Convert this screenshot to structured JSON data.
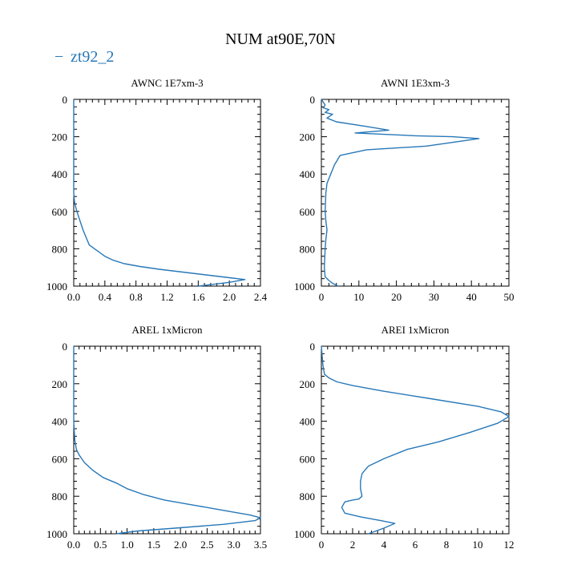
{
  "figure": {
    "title": "NUM at90E,70N",
    "legend": {
      "label": "zt92_2",
      "color": "#2878b8",
      "placement": "top-left"
    }
  },
  "chart_data": [
    {
      "type": "line",
      "title": "AWNC  1E7xm-3",
      "xlim": [
        0,
        2.4
      ],
      "xticks": [
        0,
        0.4,
        0.8,
        1.2,
        1.6,
        2.0,
        2.4
      ],
      "xtick_labels": [
        "0.0",
        "0.4",
        "0.8",
        "1.2",
        "1.6",
        "2.0",
        "2.4"
      ],
      "ylim": [
        1000,
        0
      ],
      "yticks": [
        0,
        200,
        400,
        600,
        800,
        1000
      ],
      "ytick_labels": [
        "0",
        "200",
        "400",
        "600",
        "800",
        "1000"
      ],
      "series": [
        {
          "name": "zt92_2",
          "x": [
            0,
            0,
            0,
            0.01,
            0.04,
            0.08,
            0.12,
            0.16,
            0.2,
            0.3,
            0.4,
            0.5,
            0.65,
            0.85,
            1.1,
            1.4,
            1.7,
            2.0,
            2.2,
            2.0,
            1.6
          ],
          "y": [
            0,
            300,
            500,
            550,
            600,
            650,
            700,
            740,
            780,
            810,
            840,
            860,
            880,
            895,
            910,
            925,
            940,
            955,
            965,
            980,
            1000
          ]
        }
      ]
    },
    {
      "type": "line",
      "title": "AWNI  1E3xm-3",
      "xlim": [
        0,
        50
      ],
      "xticks": [
        0,
        10,
        20,
        30,
        40,
        50
      ],
      "xtick_labels": [
        "0",
        "10",
        "20",
        "30",
        "40",
        "50"
      ],
      "ylim": [
        1000,
        0
      ],
      "yticks": [
        0,
        200,
        400,
        600,
        800,
        1000
      ],
      "ytick_labels": [
        "0",
        "200",
        "400",
        "600",
        "800",
        "1000"
      ],
      "series": [
        {
          "name": "zt92_2",
          "x": [
            0,
            1,
            0.5,
            2,
            1,
            3,
            1.5,
            4,
            12,
            18,
            9,
            25,
            35,
            42,
            28,
            12,
            5,
            3.5,
            2.5,
            1.5,
            1.2,
            1,
            1.2,
            1.5,
            1.2,
            1,
            0.8,
            1,
            2,
            3,
            4.5
          ],
          "y": [
            0,
            30,
            45,
            55,
            70,
            80,
            100,
            120,
            145,
            165,
            180,
            195,
            200,
            210,
            250,
            270,
            300,
            350,
            400,
            450,
            500,
            600,
            650,
            700,
            750,
            800,
            900,
            950,
            970,
            985,
            1000
          ]
        }
      ]
    },
    {
      "type": "line",
      "title": "AREL  1xMicron",
      "xlim": [
        0,
        3.5
      ],
      "xticks": [
        0,
        0.5,
        1.0,
        1.5,
        2.0,
        2.5,
        3.0,
        3.5
      ],
      "xtick_labels": [
        "0.0",
        "0.5",
        "1.0",
        "1.5",
        "2.0",
        "2.5",
        "3.0",
        "3.5"
      ],
      "ylim": [
        1000,
        0
      ],
      "yticks": [
        0,
        200,
        400,
        600,
        800,
        1000
      ],
      "ytick_labels": [
        "0",
        "200",
        "400",
        "600",
        "800",
        "1000"
      ],
      "series": [
        {
          "name": "zt92_2",
          "x": [
            0,
            0,
            0.02,
            0.05,
            0.1,
            0.2,
            0.35,
            0.55,
            0.8,
            1.0,
            1.3,
            1.7,
            2.3,
            2.9,
            3.3,
            3.5,
            3.4,
            2.8,
            1.9,
            1.2,
            0.8
          ],
          "y": [
            0,
            400,
            500,
            550,
            580,
            620,
            660,
            700,
            730,
            760,
            790,
            820,
            850,
            880,
            900,
            915,
            930,
            950,
            970,
            985,
            1000
          ]
        }
      ]
    },
    {
      "type": "line",
      "title": "AREI  1xMicron",
      "xlim": [
        0,
        12
      ],
      "xticks": [
        0,
        2,
        4,
        6,
        8,
        10,
        12
      ],
      "xtick_labels": [
        "0",
        "2",
        "4",
        "6",
        "8",
        "10",
        "12"
      ],
      "ylim": [
        1000,
        0
      ],
      "yticks": [
        0,
        200,
        400,
        600,
        800,
        1000
      ],
      "ytick_labels": [
        "0",
        "200",
        "400",
        "600",
        "800",
        "1000"
      ],
      "series": [
        {
          "name": "zt92_2",
          "x": [
            0,
            0.1,
            0.2,
            0.5,
            1.0,
            2.0,
            4.0,
            7.0,
            10.0,
            11.5,
            12.0,
            11.3,
            9.5,
            7.5,
            5.5,
            4.0,
            3.0,
            2.6,
            2.5,
            2.5,
            2.6,
            2.4,
            2.0,
            1.5,
            1.3,
            1.5,
            2.5,
            3.8,
            4.7,
            4.0,
            3.0
          ],
          "y": [
            0,
            100,
            150,
            170,
            190,
            210,
            240,
            280,
            320,
            350,
            375,
            410,
            460,
            510,
            550,
            600,
            640,
            680,
            720,
            760,
            800,
            815,
            820,
            830,
            860,
            890,
            910,
            930,
            945,
            970,
            1000
          ]
        }
      ]
    }
  ]
}
